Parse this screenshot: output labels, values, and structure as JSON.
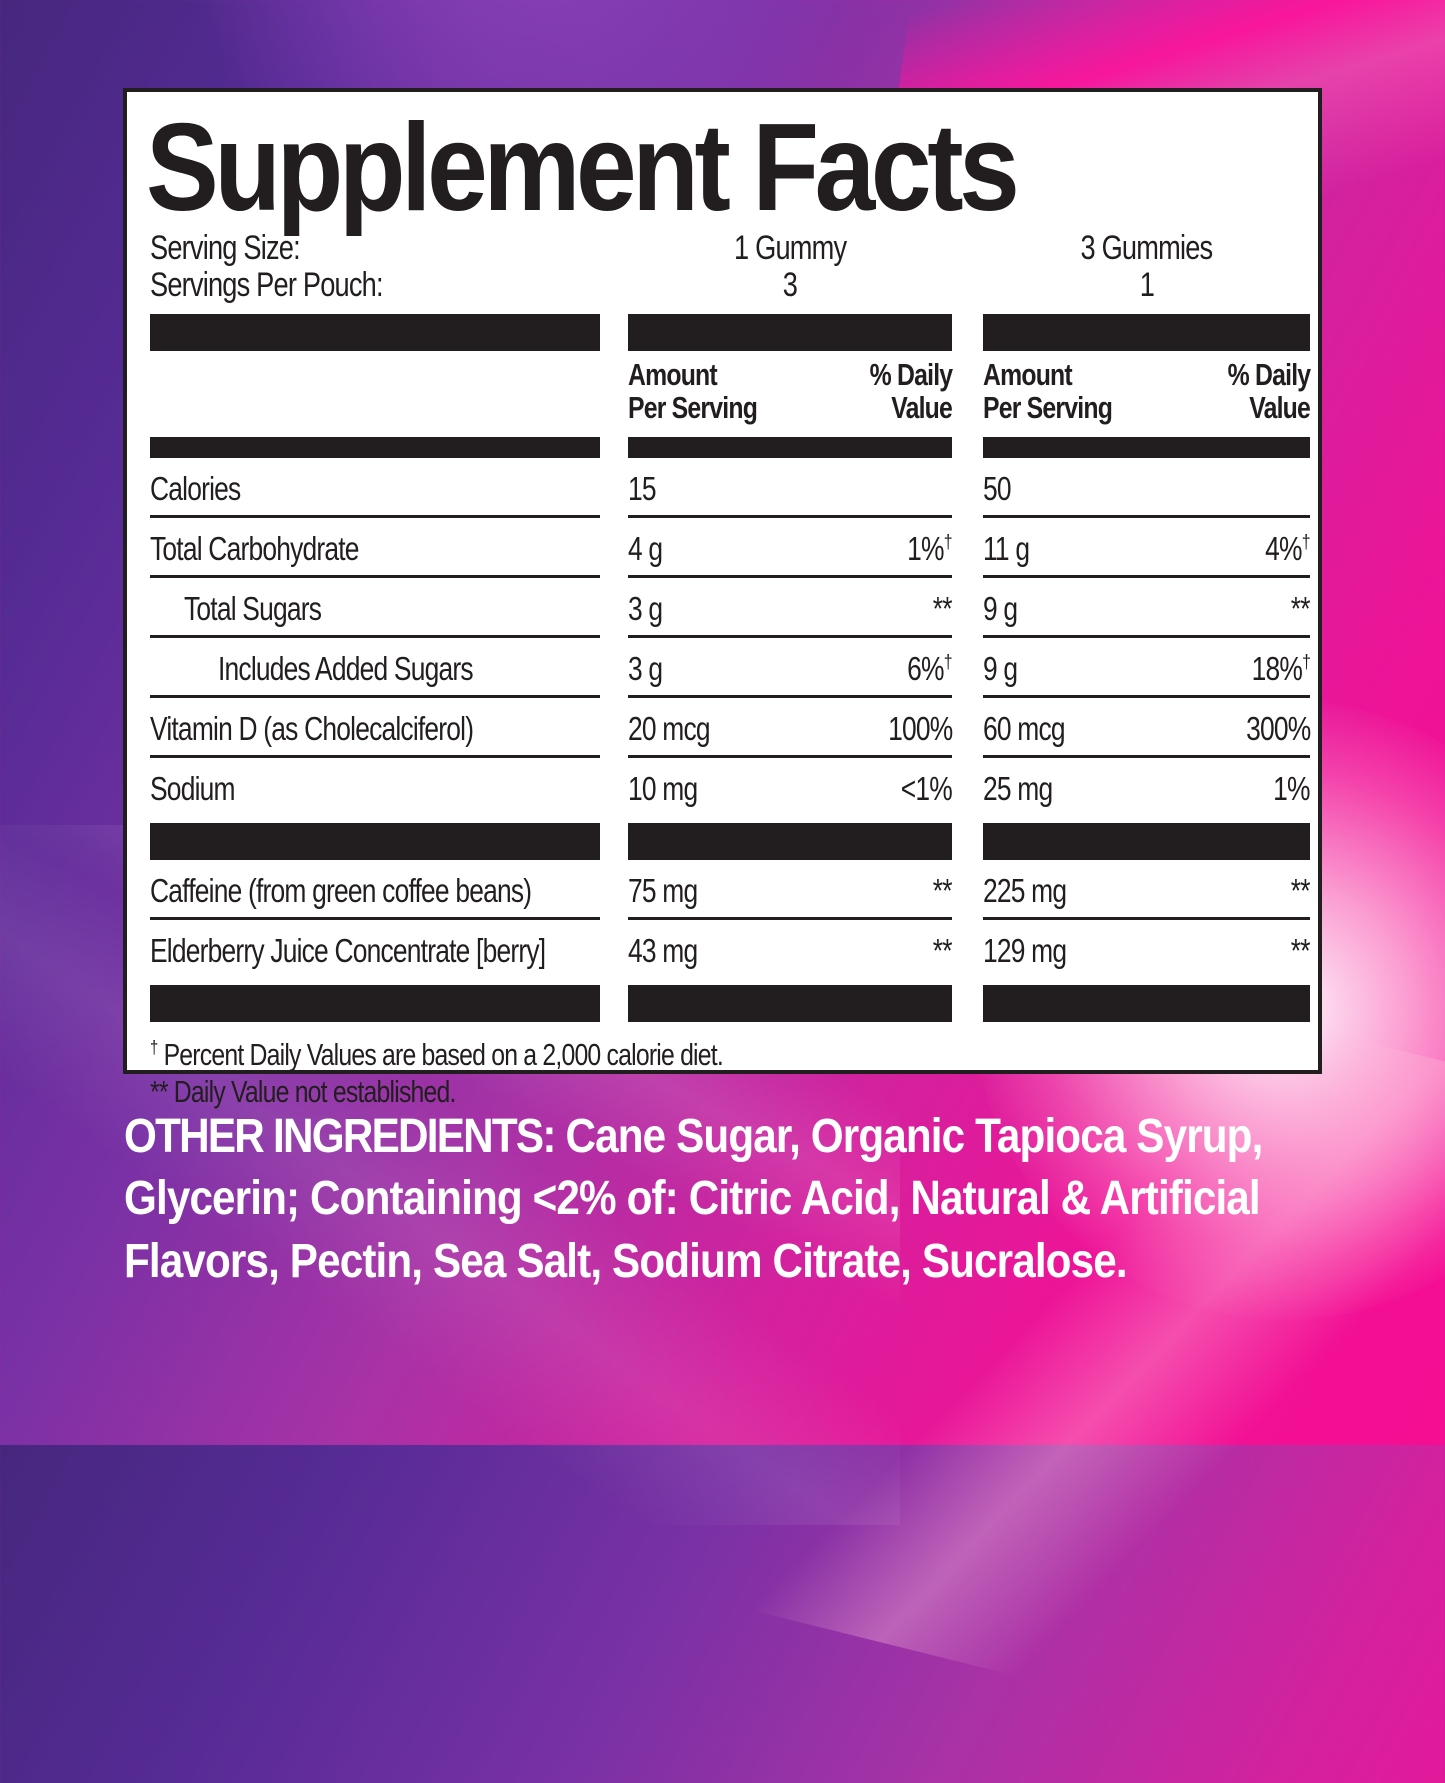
{
  "panel": {
    "title": "Supplement Facts",
    "serving": {
      "size_label": "Serving Size:",
      "per_pouch_label": "Servings Per Pouch:",
      "col1_size": "1 Gummy",
      "col1_servings": "3",
      "col2_size": "3 Gummies",
      "col2_servings": "1"
    },
    "header": {
      "amount_line1": "Amount",
      "amount_line2": "Per Serving",
      "dv_line1": "% Daily",
      "dv_line2": "Value"
    },
    "rows": [
      {
        "label": "Calories",
        "c1_amt": "15",
        "c1_dv": "",
        "c1_dag": "",
        "c2_amt": "50",
        "c2_dv": "",
        "c2_dag": ""
      },
      {
        "label": "Total Carbohydrate",
        "c1_amt": "4 g",
        "c1_dv": "1%",
        "c1_dag": "†",
        "c2_amt": "11 g",
        "c2_dv": "4%",
        "c2_dag": "†"
      },
      {
        "label": "Total Sugars",
        "c1_amt": "3 g",
        "c1_dv": "**",
        "c1_dag": "",
        "c2_amt": "9 g",
        "c2_dv": "**",
        "c2_dag": ""
      },
      {
        "label": "Includes Added Sugars",
        "c1_amt": "3 g",
        "c1_dv": "6%",
        "c1_dag": "†",
        "c2_amt": "9 g",
        "c2_dv": "18%",
        "c2_dag": "†"
      },
      {
        "label": "Vitamin D (as Cholecalciferol)",
        "c1_amt": "20 mcg",
        "c1_dv": "100%",
        "c1_dag": "",
        "c2_amt": "60 mcg",
        "c2_dv": "300%",
        "c2_dag": ""
      },
      {
        "label": "Sodium",
        "c1_amt": "10 mg",
        "c1_dv": "<1%",
        "c1_dag": "",
        "c2_amt": "25 mg",
        "c2_dv": "1%",
        "c2_dag": ""
      },
      {
        "label": "Caffeine (from green coffee beans)",
        "c1_amt": "75 mg",
        "c1_dv": "**",
        "c1_dag": "",
        "c2_amt": "225 mg",
        "c2_dv": "**",
        "c2_dag": ""
      },
      {
        "label": "Elderberry Juice Concentrate [berry]",
        "c1_amt": "43 mg",
        "c1_dv": "**",
        "c1_dag": "",
        "c2_amt": "129 mg",
        "c2_dv": "**",
        "c2_dag": ""
      }
    ],
    "footnotes": {
      "dagger_symbol": "†",
      "dagger_text": " Percent Daily Values are based on a 2,000 calorie diet.",
      "asterisk_symbol": "**",
      "asterisk_text": " Daily Value not established."
    }
  },
  "other_ingredients": {
    "heading": "OTHER INGREDIENTS:",
    "line1_rest": " Cane Sugar, Organic Tapioca Syrup,",
    "line2": "Glycerin; Containing <2% of: Citric Acid, Natural & Artificial",
    "line3": "Flavors, Pectin, Sea Salt, Sodium Citrate, Sucralose."
  },
  "colors": {
    "purple": "#562b95",
    "magenta": "#d4219e",
    "hot_pink": "#f50d92",
    "ink": "#221e1f",
    "panel_bg": "#ffffff",
    "ingredients_text": "#ffffff"
  }
}
